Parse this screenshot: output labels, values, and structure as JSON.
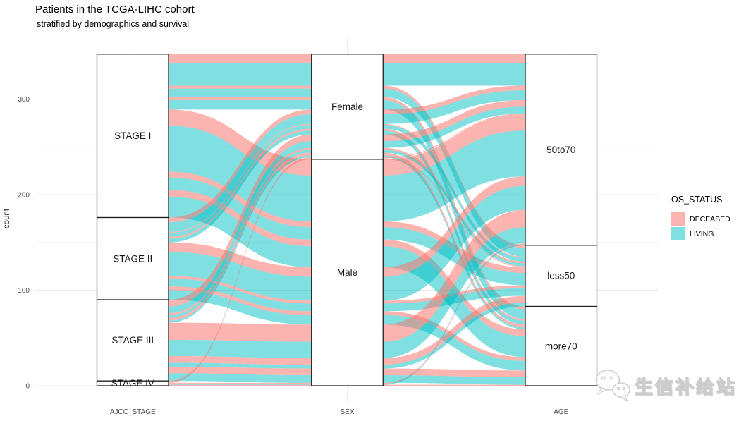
{
  "title": "Patients in the TCGA-LIHC cohort",
  "subtitle": "stratified by demographics and survival",
  "y_axis": {
    "title": "count",
    "ticks": [
      0,
      100,
      200,
      300
    ],
    "minor_ticks": [
      50,
      150,
      250,
      350
    ],
    "limit_top": 350
  },
  "legend": {
    "title": "OS_STATUS",
    "items": [
      {
        "label": "DECEASED",
        "color": "#F8766D",
        "alpha": 0.55
      },
      {
        "label": "LIVING",
        "color": "#00BFC4",
        "alpha": 0.5
      }
    ]
  },
  "watermark": {
    "text": "生信补给站",
    "icon": "wechat-bubbles-icon"
  },
  "chart_data": {
    "type": "alluvial",
    "title": "Patients in the TCGA-LIHC cohort",
    "subtitle": "stratified by demographics and survival",
    "ylabel": "count",
    "ylim": [
      0,
      350
    ],
    "grid": true,
    "legend_position": "right",
    "fill_variable": "OS_STATUS",
    "statuses": [
      "DECEASED",
      "LIVING"
    ],
    "colors": {
      "DECEASED": "#F8766D",
      "LIVING": "#00BFC4"
    },
    "axes": [
      {
        "name": "AJCC_STAGE",
        "strata": [
          "STAGE I",
          "STAGE II",
          "STAGE III",
          "STAGE IV"
        ]
      },
      {
        "name": "SEX",
        "strata": [
          "Female",
          "Male"
        ]
      },
      {
        "name": "AGE",
        "strata": [
          "50to70",
          "less50",
          "more70"
        ]
      }
    ],
    "stratum_totals": {
      "AJCC_STAGE": {
        "STAGE I": 171,
        "STAGE II": 86,
        "STAGE III": 85,
        "STAGE IV": 5
      },
      "SEX": {
        "Female": 110,
        "Male": 237
      },
      "AGE": {
        "50to70": 200,
        "less50": 64,
        "more70": 83
      }
    },
    "total_patients": 347,
    "flows": [
      {
        "stage": "STAGE I",
        "sex": "Female",
        "age": "50to70",
        "status": "DECEASED",
        "n": 9
      },
      {
        "stage": "STAGE I",
        "sex": "Female",
        "age": "less50",
        "status": "DECEASED",
        "n": 3
      },
      {
        "stage": "STAGE I",
        "sex": "Female",
        "age": "more70",
        "status": "DECEASED",
        "n": 3
      },
      {
        "stage": "STAGE I",
        "sex": "Female",
        "age": "50to70",
        "status": "LIVING",
        "n": 24
      },
      {
        "stage": "STAGE I",
        "sex": "Female",
        "age": "less50",
        "status": "LIVING",
        "n": 9
      },
      {
        "stage": "STAGE I",
        "sex": "Female",
        "age": "more70",
        "status": "LIVING",
        "n": 10
      },
      {
        "stage": "STAGE I",
        "sex": "Male",
        "age": "50to70",
        "status": "DECEASED",
        "n": 17
      },
      {
        "stage": "STAGE I",
        "sex": "Male",
        "age": "less50",
        "status": "DECEASED",
        "n": 6
      },
      {
        "stage": "STAGE I",
        "sex": "Male",
        "age": "more70",
        "status": "DECEASED",
        "n": 7
      },
      {
        "stage": "STAGE I",
        "sex": "Male",
        "age": "50to70",
        "status": "LIVING",
        "n": 48
      },
      {
        "stage": "STAGE I",
        "sex": "Male",
        "age": "less50",
        "status": "LIVING",
        "n": 13
      },
      {
        "stage": "STAGE I",
        "sex": "Male",
        "age": "more70",
        "status": "LIVING",
        "n": 22
      },
      {
        "stage": "STAGE II",
        "sex": "Female",
        "age": "50to70",
        "status": "DECEASED",
        "n": 5
      },
      {
        "stage": "STAGE II",
        "sex": "Female",
        "age": "less50",
        "status": "DECEASED",
        "n": 1
      },
      {
        "stage": "STAGE II",
        "sex": "Female",
        "age": "more70",
        "status": "DECEASED",
        "n": 2
      },
      {
        "stage": "STAGE II",
        "sex": "Female",
        "age": "50to70",
        "status": "LIVING",
        "n": 10
      },
      {
        "stage": "STAGE II",
        "sex": "Female",
        "age": "less50",
        "status": "LIVING",
        "n": 4
      },
      {
        "stage": "STAGE II",
        "sex": "Female",
        "age": "more70",
        "status": "LIVING",
        "n": 4
      },
      {
        "stage": "STAGE II",
        "sex": "Male",
        "age": "50to70",
        "status": "DECEASED",
        "n": 10
      },
      {
        "stage": "STAGE II",
        "sex": "Male",
        "age": "less50",
        "status": "DECEASED",
        "n": 3
      },
      {
        "stage": "STAGE II",
        "sex": "Male",
        "age": "more70",
        "status": "DECEASED",
        "n": 4
      },
      {
        "stage": "STAGE II",
        "sex": "Male",
        "age": "50to70",
        "status": "LIVING",
        "n": 25
      },
      {
        "stage": "STAGE II",
        "sex": "Male",
        "age": "less50",
        "status": "LIVING",
        "n": 8
      },
      {
        "stage": "STAGE II",
        "sex": "Male",
        "age": "more70",
        "status": "LIVING",
        "n": 10
      },
      {
        "stage": "STAGE III",
        "sex": "Female",
        "age": "50to70",
        "status": "DECEASED",
        "n": 7
      },
      {
        "stage": "STAGE III",
        "sex": "Female",
        "age": "less50",
        "status": "DECEASED",
        "n": 2
      },
      {
        "stage": "STAGE III",
        "sex": "Female",
        "age": "more70",
        "status": "DECEASED",
        "n": 3
      },
      {
        "stage": "STAGE III",
        "sex": "Female",
        "age": "50to70",
        "status": "LIVING",
        "n": 7
      },
      {
        "stage": "STAGE III",
        "sex": "Female",
        "age": "less50",
        "status": "LIVING",
        "n": 3
      },
      {
        "stage": "STAGE III",
        "sex": "Female",
        "age": "more70",
        "status": "LIVING",
        "n": 2
      },
      {
        "stage": "STAGE III",
        "sex": "Male",
        "age": "50to70",
        "status": "DECEASED",
        "n": 18
      },
      {
        "stage": "STAGE III",
        "sex": "Male",
        "age": "less50",
        "status": "DECEASED",
        "n": 7
      },
      {
        "stage": "STAGE III",
        "sex": "Male",
        "age": "more70",
        "status": "DECEASED",
        "n": 7
      },
      {
        "stage": "STAGE III",
        "sex": "Male",
        "age": "50to70",
        "status": "LIVING",
        "n": 17
      },
      {
        "stage": "STAGE III",
        "sex": "Male",
        "age": "less50",
        "status": "LIVING",
        "n": 4
      },
      {
        "stage": "STAGE III",
        "sex": "Male",
        "age": "more70",
        "status": "LIVING",
        "n": 8
      },
      {
        "stage": "STAGE IV",
        "sex": "Female",
        "age": "50to70",
        "status": "DECEASED",
        "n": 1
      },
      {
        "stage": "STAGE IV",
        "sex": "Female",
        "age": "less50",
        "status": "DECEASED",
        "n": 1
      },
      {
        "stage": "STAGE IV",
        "sex": "Male",
        "age": "50to70",
        "status": "DECEASED",
        "n": 1
      },
      {
        "stage": "STAGE IV",
        "sex": "Male",
        "age": "more70",
        "status": "DECEASED",
        "n": 1
      },
      {
        "stage": "STAGE IV",
        "sex": "Male",
        "age": "50to70",
        "status": "LIVING",
        "n": 1
      }
    ]
  }
}
